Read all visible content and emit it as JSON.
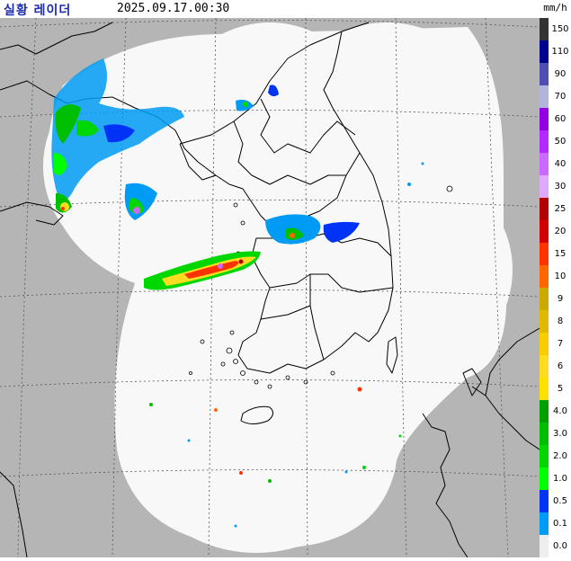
{
  "header": {
    "title": "실황 레이더",
    "timestamp": "2025.09.17.00:30",
    "unit": "mm/h"
  },
  "legend": {
    "labels": [
      "150",
      "110",
      "90",
      "70",
      "60",
      "50",
      "40",
      "30",
      "25",
      "20",
      "15",
      "10",
      "9",
      "8",
      "7",
      "6",
      "5",
      "4.0",
      "3.0",
      "2.0",
      "1.0",
      "0.5",
      "0.1",
      "0.0"
    ],
    "colors": [
      "#333333",
      "#000390",
      "#4c4eb1",
      "#b3b4de",
      "#9300e4",
      "#b329ff",
      "#c969ff",
      "#e0a9ff",
      "#b40000",
      "#d20000",
      "#ff3200",
      "#ff6600",
      "#ccaa00",
      "#e0b900",
      "#f9cd00",
      "#ffdc1f",
      "#ffe100",
      "#00a000",
      "#00be00",
      "#00d700",
      "#00ff00",
      "#0033f5",
      "#009bf5",
      "#eeeeee"
    ]
  },
  "colors": {
    "outside_coverage": "#b5b5b5",
    "coverage": "#f8f8f8",
    "coastline": "#000000",
    "grid": "#555555"
  }
}
